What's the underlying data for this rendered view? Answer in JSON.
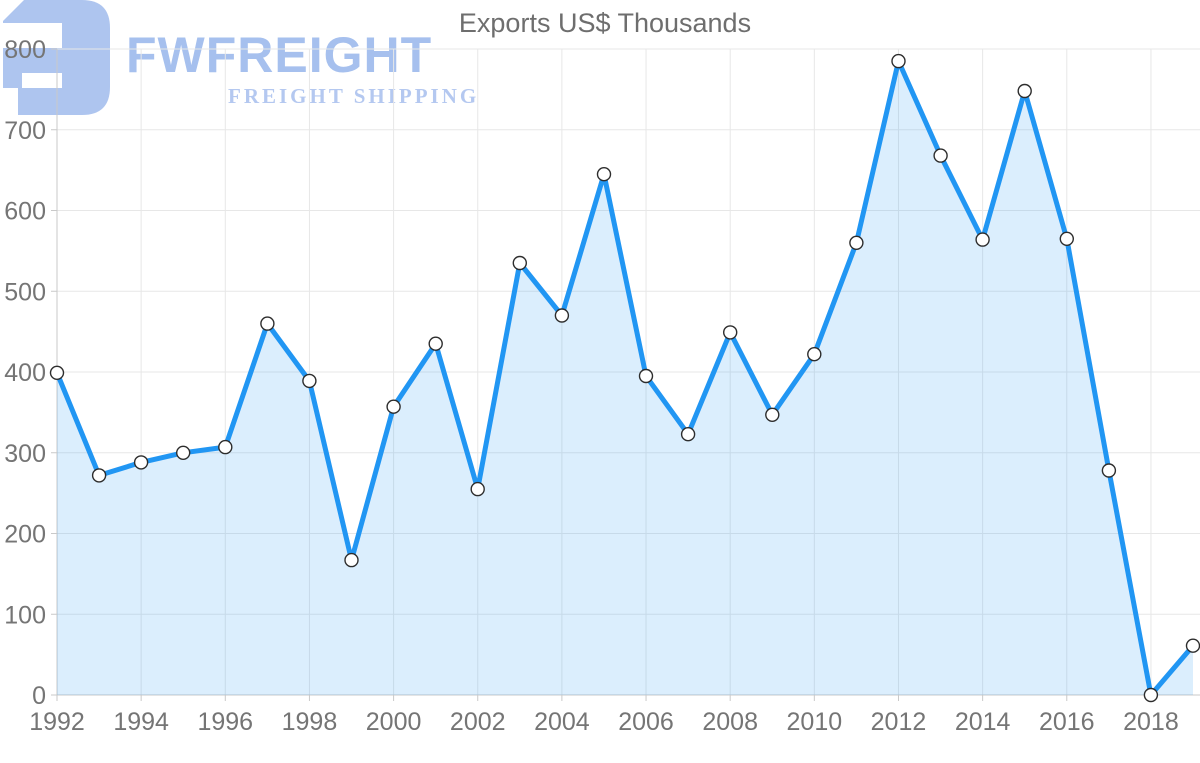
{
  "chart_data": {
    "type": "area",
    "title": "Exports US$ Thousands",
    "x": [
      1992,
      1993,
      1994,
      1995,
      1996,
      1997,
      1998,
      1999,
      2000,
      2001,
      2002,
      2003,
      2004,
      2005,
      2006,
      2007,
      2008,
      2009,
      2010,
      2011,
      2012,
      2013,
      2014,
      2015,
      2016,
      2017,
      2018,
      2019
    ],
    "values": [
      399,
      272,
      288,
      300,
      307,
      460,
      389,
      167,
      357,
      435,
      255,
      535,
      470,
      645,
      395,
      323,
      449,
      347,
      422,
      560,
      785,
      668,
      564,
      748,
      565,
      278,
      0,
      61
    ],
    "series_name": "Exports US$ Thousands",
    "xlabel": "",
    "ylabel": "",
    "ylim": [
      0,
      800
    ],
    "y_ticks": [
      0,
      100,
      200,
      300,
      400,
      500,
      600,
      700,
      800
    ],
    "x_tick_years": [
      1992,
      1994,
      1996,
      1998,
      2000,
      2002,
      2004,
      2006,
      2008,
      2010,
      2012,
      2014,
      2016,
      2018
    ],
    "grid": true,
    "legend": false,
    "colors": {
      "line": "#2196f3",
      "area_fill": "rgba(33,150,243,0.16)",
      "marker_fill": "#ffffff",
      "marker_stroke": "#2d2d2d",
      "gridline": "#e7e7e7",
      "axis_line": "#c9c9c9",
      "tick_label": "#757575",
      "title": "#6e6e6e"
    }
  },
  "watermark": {
    "brand": "FWFREIGHT",
    "tagline": "FREIGHT SHIPPING",
    "logo_color": "#aec5ef",
    "brand_color": "#a6c0ee",
    "tagline_color": "#b4c8f0"
  }
}
